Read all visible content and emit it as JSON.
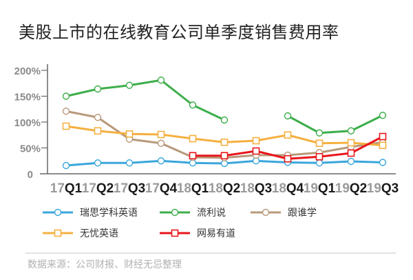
{
  "title": "美股上市的在线教育公司单季度销售费用率",
  "footer": "数据来源：公司财报、财经无忌整理",
  "legend": [
    {
      "label": "瑞思学科英语",
      "marker": "circle",
      "color": "#3aa6dc"
    },
    {
      "label": "流利说",
      "marker": "circle",
      "color": "#3cae4a"
    },
    {
      "label": "跟谁学",
      "marker": "circle",
      "color": "#b8997a"
    },
    {
      "label": "无忧英语",
      "marker": "square",
      "color": "#f5b040"
    },
    {
      "label": "网易有道",
      "marker": "square",
      "color": "#e8161b"
    }
  ],
  "chart_data": {
    "type": "line",
    "title": "美股上市的在线教育公司单季度销售费用率",
    "xlabel": "",
    "ylabel": "",
    "ylim": [
      0,
      200
    ],
    "yticks": [
      "0",
      "50%",
      "100%",
      "150%",
      "200%"
    ],
    "grid": false,
    "legend_position": "bottom",
    "categories": [
      "17Q1",
      "17Q2",
      "17Q3",
      "17Q4",
      "18Q1",
      "18Q2",
      "18Q3",
      "18Q4",
      "19Q1",
      "19Q2",
      "19Q3"
    ],
    "category_parts": [
      [
        "17",
        "Q1"
      ],
      [
        "17",
        "Q2"
      ],
      [
        "17",
        "Q3"
      ],
      [
        "17",
        "Q4"
      ],
      [
        "18",
        "Q1"
      ],
      [
        "18",
        "Q2"
      ],
      [
        "18",
        "Q3"
      ],
      [
        "18",
        "Q4"
      ],
      [
        "19",
        "Q1"
      ],
      [
        "19",
        "Q2"
      ],
      [
        "19",
        "Q3"
      ]
    ],
    "series": [
      {
        "name": "瑞思学科英语",
        "color": "#3aa6dc",
        "marker": "circle",
        "values": [
          16,
          21,
          21,
          25,
          21,
          20,
          25,
          22,
          21,
          24,
          22
        ]
      },
      {
        "name": "流利说",
        "color": "#3cae4a",
        "marker": "circle",
        "values": [
          150,
          164,
          171,
          181,
          133,
          104,
          null,
          112,
          79,
          83,
          113
        ]
      },
      {
        "name": "跟谁学",
        "color": "#b8997a",
        "marker": "circle",
        "values": [
          121,
          109,
          67,
          59,
          32,
          31,
          36,
          36,
          41,
          52,
          61
        ]
      },
      {
        "name": "无忧英语",
        "color": "#f5b040",
        "marker": "square",
        "values": [
          92,
          83,
          77,
          76,
          68,
          61,
          64,
          75,
          59,
          60,
          55
        ]
      },
      {
        "name": "网易有道",
        "color": "#e8161b",
        "marker": "square",
        "values": [
          null,
          null,
          null,
          null,
          35,
          35,
          44,
          29,
          33,
          40,
          72
        ]
      }
    ]
  }
}
